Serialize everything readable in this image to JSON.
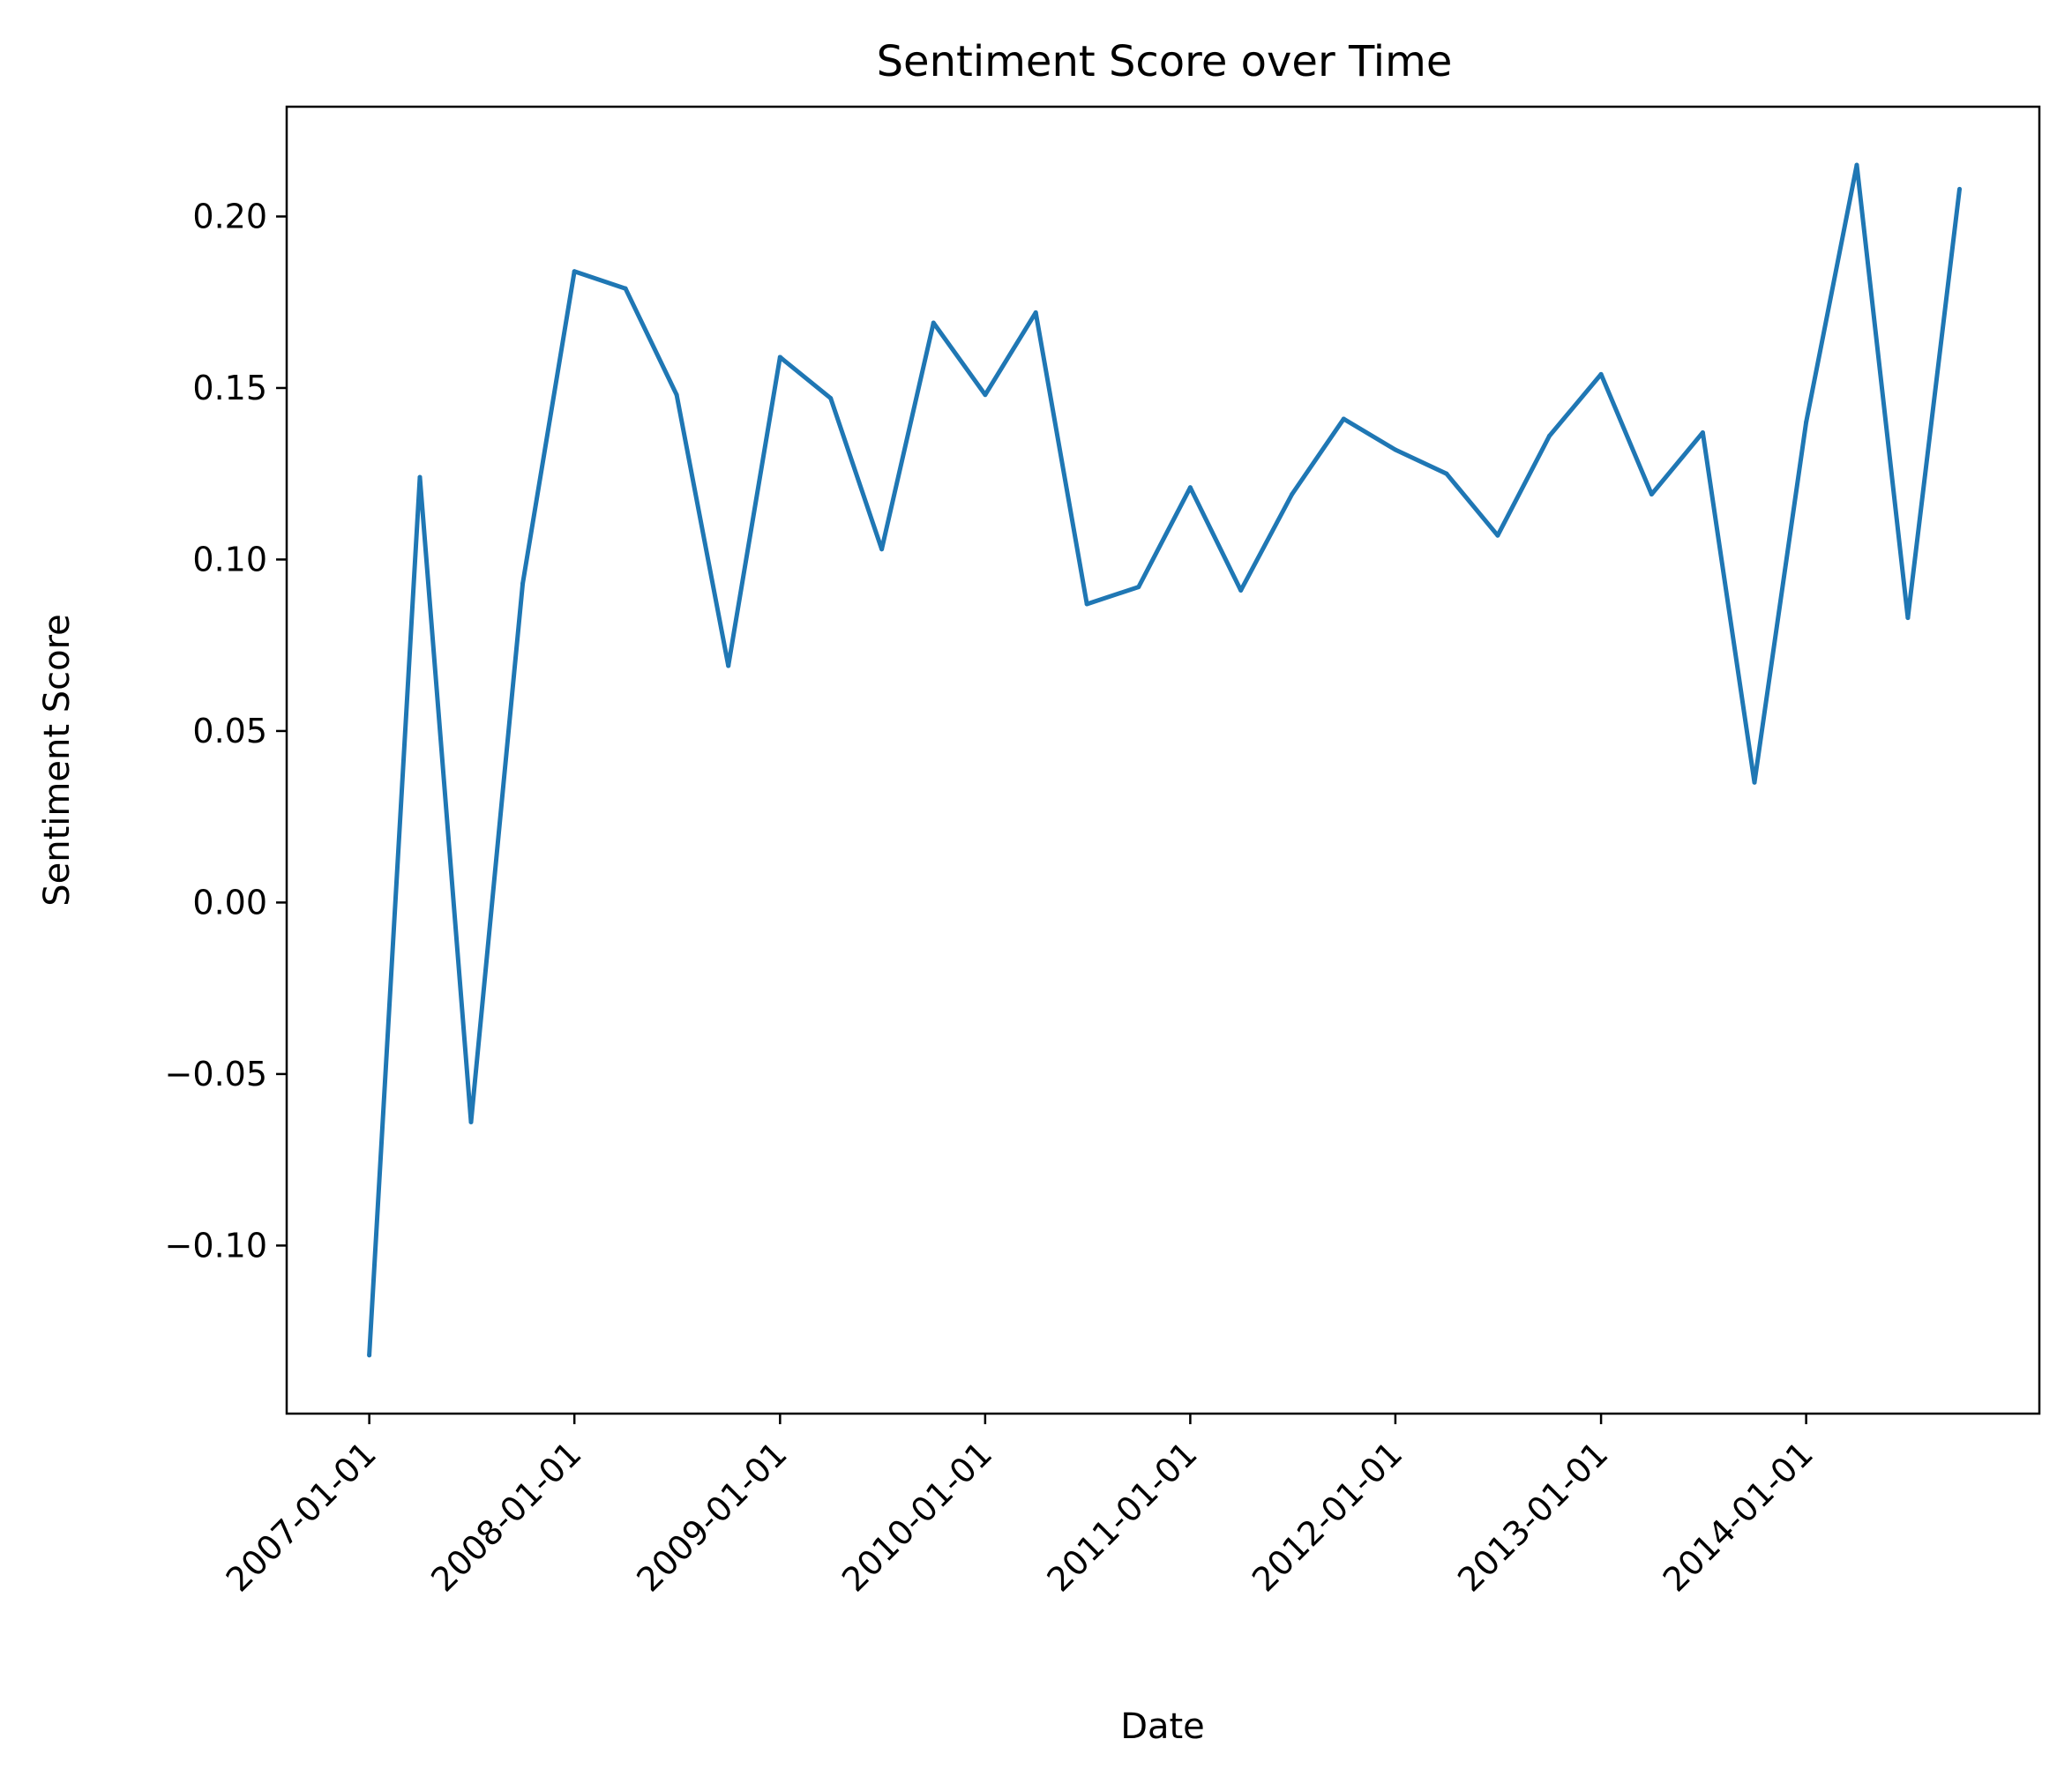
{
  "chart_data": {
    "type": "line",
    "title": "Sentiment Score over Time",
    "xlabel": "Date",
    "ylabel": "Sentiment Score",
    "x_tick_labels": [
      "2007-01-01",
      "2008-01-01",
      "2009-01-01",
      "2010-01-01",
      "2011-01-01",
      "2012-01-01",
      "2013-01-01",
      "2014-01-01"
    ],
    "y_tick_labels": [
      "−0.10",
      "−0.05",
      "0.00",
      "0.05",
      "0.10",
      "0.15",
      "0.20"
    ],
    "y_ticks": [
      -0.1,
      -0.05,
      0.0,
      0.05,
      0.1,
      0.15,
      0.2
    ],
    "xlim": [
      "2006-08-07",
      "2015-02-20"
    ],
    "ylim": [
      -0.149,
      0.232
    ],
    "grid": false,
    "color": "#1f77b4",
    "series": [
      {
        "x": [
          "2007-01-01",
          "2007-04-01",
          "2007-07-01",
          "2007-10-01",
          "2008-01-01",
          "2008-04-01",
          "2008-07-01",
          "2008-10-01",
          "2009-01-01",
          "2009-04-01",
          "2009-07-01",
          "2009-10-01",
          "2010-01-01",
          "2010-04-01",
          "2010-07-01",
          "2010-10-01",
          "2011-01-01",
          "2011-04-01",
          "2011-07-01",
          "2011-10-01",
          "2012-01-01",
          "2012-04-01",
          "2012-07-01",
          "2012-10-01",
          "2013-01-01",
          "2013-04-01",
          "2013-07-01",
          "2013-10-01",
          "2014-01-01",
          "2014-04-01",
          "2014-07-01",
          "2014-10-01"
        ],
        "values": [
          -0.132,
          0.124,
          -0.064,
          0.093,
          0.184,
          0.179,
          0.148,
          0.069,
          0.159,
          0.147,
          0.103,
          0.169,
          0.148,
          0.172,
          0.087,
          0.092,
          0.121,
          0.091,
          0.119,
          0.141,
          0.132,
          0.125,
          0.107,
          0.136,
          0.154,
          0.119,
          0.137,
          0.035,
          0.14,
          0.215,
          0.083,
          0.208
        ]
      }
    ]
  }
}
